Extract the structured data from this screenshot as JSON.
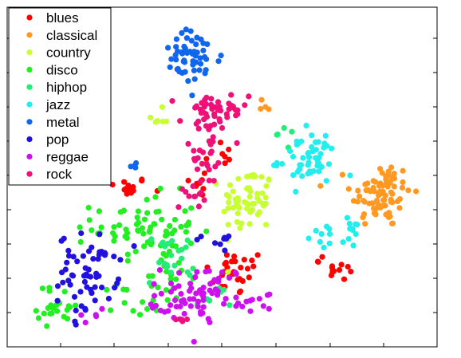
{
  "chart_data": {
    "type": "scatter",
    "title": "",
    "xlabel": "",
    "ylabel": "",
    "xlim": [
      0,
      100
    ],
    "ylim": [
      0,
      100
    ],
    "grid": false,
    "legend_position": "top-left",
    "series": [
      {
        "name": "blues",
        "color": "#ff0000",
        "clusters": [
          {
            "cx": 28,
            "cy": 47,
            "sx": 2.5,
            "sy": 1.5,
            "n": 14
          },
          {
            "cx": 53,
            "cy": 22,
            "sx": 3.5,
            "sy": 3.5,
            "n": 28
          },
          {
            "cx": 78,
            "cy": 22,
            "sx": 1.8,
            "sy": 1.3,
            "n": 12
          },
          {
            "cx": 45,
            "cy": 49,
            "sx": 1.5,
            "sy": 2.5,
            "n": 8
          },
          {
            "cx": 73,
            "cy": 26,
            "sx": 1,
            "sy": 1,
            "n": 3
          },
          {
            "cx": 49,
            "cy": 57,
            "sx": 2,
            "sy": 2.5,
            "n": 8
          }
        ]
      },
      {
        "name": "classical",
        "color": "#ff9922",
        "clusters": [
          {
            "cx": 87,
            "cy": 45,
            "sx": 3.5,
            "sy": 5,
            "n": 80
          },
          {
            "cx": 60,
            "cy": 71,
            "sx": 1,
            "sy": 2,
            "n": 4
          }
        ]
      },
      {
        "name": "country",
        "color": "#c8ff32",
        "clusters": [
          {
            "cx": 56,
            "cy": 43,
            "sx": 3,
            "sy": 5,
            "n": 60
          },
          {
            "cx": 35,
            "cy": 67,
            "sx": 1.2,
            "sy": 1.5,
            "n": 6
          }
        ]
      },
      {
        "name": "disco",
        "color": "#22ee22",
        "clusters": [
          {
            "cx": 32,
            "cy": 35,
            "sx": 6,
            "sy": 5,
            "n": 70
          },
          {
            "cx": 37,
            "cy": 20,
            "sx": 3,
            "sy": 4,
            "n": 20
          },
          {
            "cx": 12,
            "cy": 12,
            "sx": 2.5,
            "sy": 3,
            "n": 25
          },
          {
            "cx": 28,
            "cy": 15,
            "sx": 3,
            "sy": 3,
            "n": 12
          }
        ]
      },
      {
        "name": "hiphop",
        "color": "#22ee77",
        "clusters": [
          {
            "cx": 38,
            "cy": 26,
            "sx": 3,
            "sy": 4,
            "n": 22
          },
          {
            "cx": 48,
            "cy": 14,
            "sx": 2,
            "sy": 2,
            "n": 8
          },
          {
            "cx": 64,
            "cy": 63,
            "sx": 1.5,
            "sy": 1.5,
            "n": 5
          }
        ]
      },
      {
        "name": "jazz",
        "color": "#22eeee",
        "clusters": [
          {
            "cx": 70,
            "cy": 55,
            "sx": 3.5,
            "sy": 4,
            "n": 50
          },
          {
            "cx": 76,
            "cy": 33,
            "sx": 2.5,
            "sy": 1.5,
            "n": 16
          },
          {
            "cx": 81,
            "cy": 35,
            "sx": 1.5,
            "sy": 2,
            "n": 5
          }
        ]
      },
      {
        "name": "metal",
        "color": "#1166ee",
        "clusters": [
          {
            "cx": 43,
            "cy": 85,
            "sx": 3.5,
            "sy": 4,
            "n": 55
          },
          {
            "cx": 30,
            "cy": 53,
            "sx": 1,
            "sy": 1,
            "n": 4
          }
        ]
      },
      {
        "name": "pop",
        "color": "#2211dd",
        "clusters": [
          {
            "cx": 19,
            "cy": 23,
            "sx": 3.5,
            "sy": 5,
            "n": 55
          },
          {
            "cx": 48,
            "cy": 32,
            "sx": 2.5,
            "sy": 3,
            "n": 9
          },
          {
            "cx": 17,
            "cy": 9,
            "sx": 1.5,
            "sy": 1.5,
            "n": 6
          }
        ]
      },
      {
        "name": "reggae",
        "color": "#cc11ee",
        "clusters": [
          {
            "cx": 46,
            "cy": 16,
            "sx": 5,
            "sy": 4,
            "n": 65
          },
          {
            "cx": 38,
            "cy": 12,
            "sx": 2,
            "sy": 2,
            "n": 10
          },
          {
            "cx": 21,
            "cy": 9,
            "sx": 2,
            "sy": 2,
            "n": 5
          },
          {
            "cx": 56,
            "cy": 11,
            "sx": 2,
            "sy": 2,
            "n": 6
          }
        ]
      },
      {
        "name": "rock",
        "color": "#ee1177",
        "clusters": [
          {
            "cx": 48,
            "cy": 69,
            "sx": 4,
            "sy": 3,
            "n": 45
          },
          {
            "cx": 46,
            "cy": 57,
            "sx": 3,
            "sy": 5,
            "n": 30
          },
          {
            "cx": 43,
            "cy": 45,
            "sx": 1.5,
            "sy": 2,
            "n": 10
          },
          {
            "cx": 40,
            "cy": 8,
            "sx": 1.5,
            "sy": 1.5,
            "n": 4
          }
        ]
      }
    ]
  }
}
